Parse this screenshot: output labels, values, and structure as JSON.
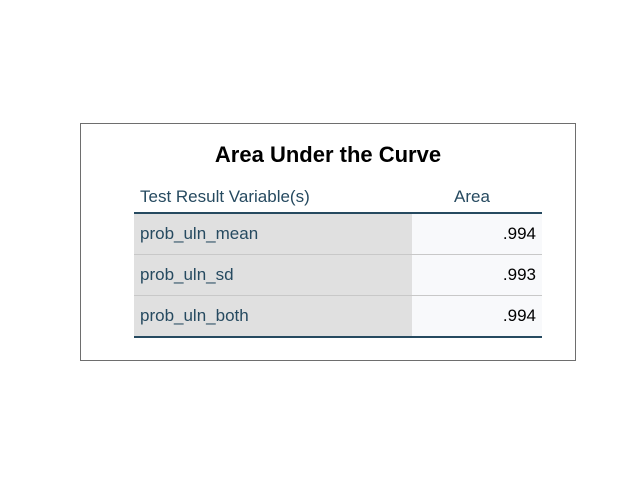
{
  "table": {
    "title": "Area Under the Curve",
    "headers": {
      "variable": "Test Result Variable(s)",
      "area": "Area"
    },
    "rows": [
      {
        "variable": "prob_uln_mean",
        "area": ".994"
      },
      {
        "variable": "prob_uln_sd",
        "area": ".993"
      },
      {
        "variable": "prob_uln_both",
        "area": ".994"
      }
    ]
  },
  "colors": {
    "header_text": "#264a60",
    "label_cell_bg": "#e0e0e0",
    "value_cell_bg": "#f8f9fb",
    "rule": "#264a60"
  }
}
